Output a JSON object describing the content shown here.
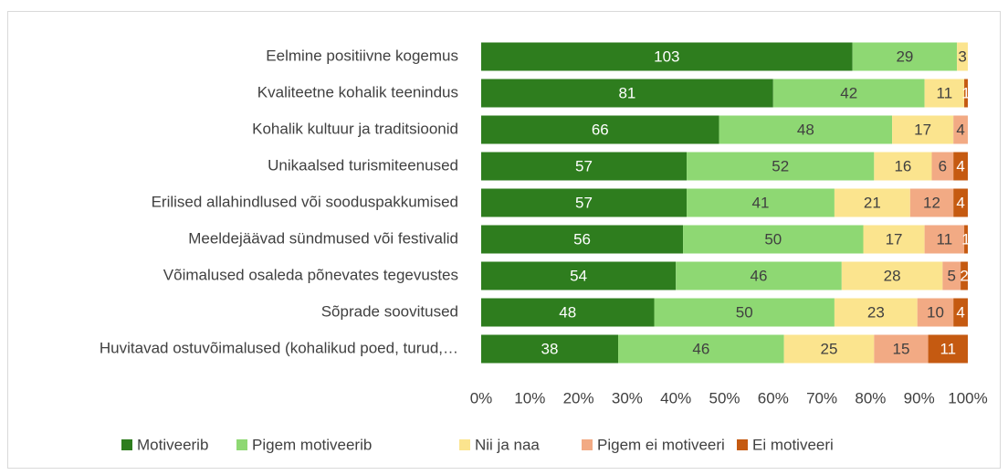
{
  "chart_data": {
    "type": "bar",
    "orientation": "horizontal",
    "stacking": "percent",
    "categories": [
      "Eelmine positiivne kogemus",
      "Kvaliteetne kohalik teenindus",
      "Kohalik kultuur ja traditsioonid",
      "Unikaalsed turismiteenused",
      "Erilised allahindlused või sooduspakkumised",
      "Meeldejäävad sündmused või festivalid",
      "Võimalused osaleda põnevates tegevustes",
      "Sõprade soovitused",
      "Huvitavad ostuvõimalused (kohalikud poed, turud,…"
    ],
    "series": [
      {
        "name": "Motiveerib",
        "color": "#2e7d1e",
        "label_color": "#ffffff",
        "values": [
          103,
          81,
          66,
          57,
          57,
          56,
          54,
          48,
          38
        ]
      },
      {
        "name": "Pigem motiveerib",
        "color": "#8ed873",
        "label_color": "#404040",
        "values": [
          29,
          42,
          48,
          52,
          41,
          50,
          46,
          50,
          46
        ]
      },
      {
        "name": "Nii ja naa",
        "color": "#fbe48e",
        "label_color": "#404040",
        "values": [
          3,
          11,
          17,
          16,
          21,
          17,
          28,
          23,
          25
        ]
      },
      {
        "name": "Pigem ei motiveeri",
        "color": "#f2aa84",
        "label_color": "#404040",
        "values": [
          null,
          null,
          4,
          6,
          12,
          11,
          5,
          10,
          15
        ]
      },
      {
        "name": "Ei motiveeri",
        "color": "#c55a11",
        "label_color": "#ffffff",
        "values": [
          null,
          1,
          null,
          4,
          4,
          1,
          2,
          4,
          11
        ]
      }
    ],
    "xlim": [
      0,
      100
    ],
    "xticks": [
      {
        "value": 0,
        "label": "0%"
      },
      {
        "value": 10,
        "label": "10%"
      },
      {
        "value": 20,
        "label": "20%"
      },
      {
        "value": 30,
        "label": "30%"
      },
      {
        "value": 40,
        "label": "40%"
      },
      {
        "value": 50,
        "label": "50%"
      },
      {
        "value": 60,
        "label": "60%"
      },
      {
        "value": 70,
        "label": "70%"
      },
      {
        "value": 80,
        "label": "80%"
      },
      {
        "value": 90,
        "label": "90%"
      },
      {
        "value": 100,
        "label": "100%"
      }
    ],
    "legend": "bottom"
  }
}
